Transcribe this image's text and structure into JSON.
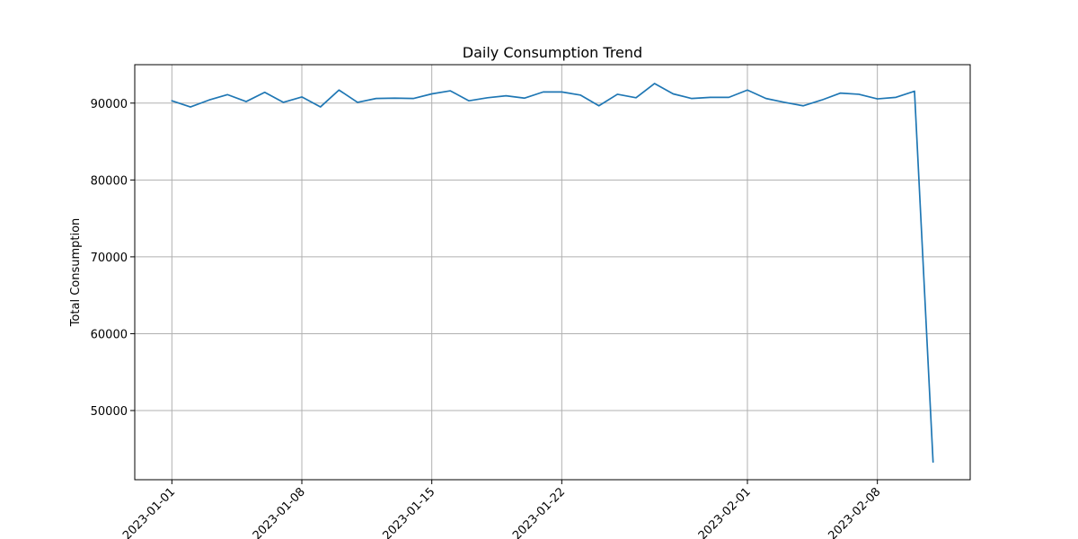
{
  "chart_data": {
    "type": "line",
    "title": "Daily Consumption Trend",
    "xlabel": "",
    "ylabel": "Total Consumption",
    "x_start": "2023-01-01",
    "x": [
      "2023-01-01",
      "2023-01-02",
      "2023-01-03",
      "2023-01-04",
      "2023-01-05",
      "2023-01-06",
      "2023-01-07",
      "2023-01-08",
      "2023-01-09",
      "2023-01-10",
      "2023-01-11",
      "2023-01-12",
      "2023-01-13",
      "2023-01-14",
      "2023-01-15",
      "2023-01-16",
      "2023-01-17",
      "2023-01-18",
      "2023-01-19",
      "2023-01-20",
      "2023-01-21",
      "2023-01-22",
      "2023-01-23",
      "2023-01-24",
      "2023-01-25",
      "2023-01-26",
      "2023-01-27",
      "2023-01-28",
      "2023-01-29",
      "2023-01-30",
      "2023-01-31",
      "2023-02-01",
      "2023-02-02",
      "2023-02-03",
      "2023-02-04",
      "2023-02-05",
      "2023-02-06",
      "2023-02-07",
      "2023-02-08",
      "2023-02-09",
      "2023-02-10",
      "2023-02-11"
    ],
    "series": [
      {
        "values": [
          90300,
          89500,
          90400,
          91100,
          90200,
          91400,
          90100,
          90800,
          89500,
          91700,
          90100,
          90600,
          90650,
          90600,
          91200,
          91600,
          90300,
          90700,
          90950,
          90650,
          91450,
          91450,
          91050,
          89650,
          91150,
          90700,
          92550,
          91200,
          90600,
          90750,
          90750,
          91700,
          90600,
          90100,
          89650,
          90400,
          91300,
          91150,
          90550,
          90750,
          91550,
          43300
        ],
        "color": "#1f77b4"
      }
    ],
    "x_ticks": [
      "2023-01-01",
      "2023-01-08",
      "2023-01-15",
      "2023-01-22",
      "2023-02-01",
      "2023-02-08"
    ],
    "y_ticks": [
      50000,
      60000,
      70000,
      80000,
      90000
    ],
    "xlim": [
      "2022-12-30",
      "2023-02-13"
    ],
    "ylim": [
      41000,
      95000
    ],
    "grid": true,
    "legend": "none"
  }
}
